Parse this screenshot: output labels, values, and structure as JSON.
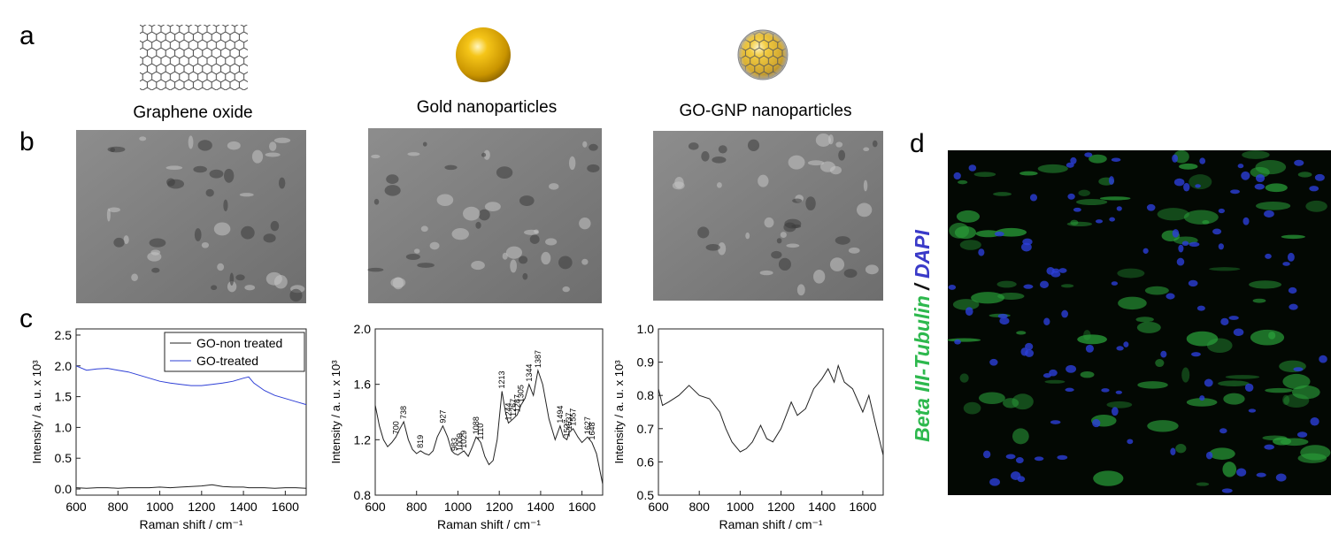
{
  "panel_labels": {
    "a": "a",
    "b": "b",
    "c": "c",
    "d": "d"
  },
  "icons": {
    "graphene": "Graphene oxide",
    "gold": "Gold nanoparticles",
    "gognp": "GO-GNP nanoparticles"
  },
  "stain_label": {
    "marker": "Beta III-Tubulin",
    "separator": " / ",
    "nucleus": "DAPI"
  },
  "chart_data": [
    {
      "type": "line",
      "xlabel": "Raman shift / cm⁻¹",
      "ylabel": "Intensity / a. u. x 10³",
      "xlim": [
        600,
        1700
      ],
      "xticks": [
        600,
        800,
        1000,
        1200,
        1400,
        1600
      ],
      "ylim": [
        -0.1,
        2.6
      ],
      "yticks": [
        {
          "value": 0,
          "label": "0.0"
        },
        0.5,
        {
          "value": 1,
          "label": "1.0"
        },
        1.5,
        {
          "value": 2,
          "label": "2.0"
        },
        2.5
      ],
      "legend": "upper right",
      "x": [
        600,
        650,
        700,
        750,
        800,
        850,
        900,
        950,
        1000,
        1050,
        1100,
        1150,
        1200,
        1250,
        1300,
        1350,
        1400,
        1425,
        1450,
        1500,
        1550,
        1600,
        1650,
        1700
      ],
      "series": [
        {
          "name": "GO-non treated",
          "color": "#222222",
          "values": [
            0.02,
            0.01,
            0.02,
            0.02,
            0.01,
            0.02,
            0.02,
            0.02,
            0.03,
            0.02,
            0.03,
            0.04,
            0.05,
            0.07,
            0.04,
            0.03,
            0.03,
            0.02,
            0.02,
            0.02,
            0.01,
            0.02,
            0.02,
            0.01
          ]
        },
        {
          "name": "GO-treated",
          "color": "#2e3fd6",
          "values": [
            2.0,
            1.93,
            1.95,
            1.96,
            1.93,
            1.9,
            1.85,
            1.8,
            1.75,
            1.72,
            1.7,
            1.68,
            1.68,
            1.7,
            1.72,
            1.75,
            1.8,
            1.82,
            1.72,
            1.6,
            1.52,
            1.47,
            1.42,
            1.37
          ]
        }
      ]
    },
    {
      "type": "line",
      "xlabel": "Raman shift / cm⁻¹",
      "ylabel": "Intensity / a. u. x 10³",
      "xlim": [
        600,
        1700
      ],
      "xticks": [
        600,
        800,
        1000,
        1200,
        1400,
        1600
      ],
      "ylim": [
        0.8,
        2.0
      ],
      "yticks": [
        0.8,
        1.2,
        1.6,
        {
          "value": 2,
          "label": "2.0"
        }
      ],
      "x": [
        600,
        620,
        640,
        660,
        680,
        700,
        720,
        738,
        760,
        780,
        800,
        819,
        840,
        860,
        880,
        900,
        927,
        950,
        970,
        983,
        1000,
        1009,
        1029,
        1050,
        1070,
        1088,
        1100,
        1110,
        1130,
        1150,
        1170,
        1190,
        1213,
        1230,
        1244,
        1267,
        1287,
        1305,
        1325,
        1344,
        1365,
        1387,
        1410,
        1440,
        1470,
        1494,
        1510,
        1527,
        1537,
        1557,
        1580,
        1600,
        1627,
        1648,
        1670,
        1700
      ],
      "series": [
        {
          "color": "#222222",
          "values": [
            1.45,
            1.3,
            1.2,
            1.15,
            1.18,
            1.22,
            1.28,
            1.33,
            1.2,
            1.13,
            1.1,
            1.12,
            1.1,
            1.09,
            1.12,
            1.22,
            1.3,
            1.22,
            1.12,
            1.1,
            1.09,
            1.1,
            1.12,
            1.08,
            1.15,
            1.22,
            1.2,
            1.18,
            1.08,
            1.02,
            1.05,
            1.2,
            1.55,
            1.4,
            1.32,
            1.35,
            1.38,
            1.45,
            1.5,
            1.6,
            1.52,
            1.7,
            1.6,
            1.35,
            1.2,
            1.3,
            1.22,
            1.2,
            1.25,
            1.28,
            1.22,
            1.18,
            1.22,
            1.18,
            1.1,
            0.88
          ]
        }
      ],
      "peaks": [
        700,
        738,
        819,
        927,
        983,
        1009,
        1029,
        1088,
        1110,
        1213,
        1244,
        1267,
        1287,
        1305,
        1344,
        1387,
        1494,
        1527,
        1537,
        1557,
        1627,
        1648
      ]
    },
    {
      "type": "line",
      "xlabel": "Raman shift / cm⁻¹",
      "ylabel": "Intensity / a. u. x 10³",
      "xlim": [
        600,
        1700
      ],
      "xticks": [
        600,
        800,
        1000,
        1200,
        1400,
        1600
      ],
      "ylim": [
        0.5,
        1.0
      ],
      "yticks": [
        0.5,
        0.6,
        0.7,
        0.8,
        0.9,
        {
          "value": 1,
          "label": "1.0"
        }
      ],
      "x": [
        600,
        620,
        650,
        700,
        750,
        800,
        850,
        900,
        930,
        960,
        1000,
        1030,
        1060,
        1100,
        1130,
        1160,
        1200,
        1250,
        1280,
        1320,
        1360,
        1400,
        1430,
        1460,
        1480,
        1510,
        1550,
        1600,
        1630,
        1660,
        1700
      ],
      "series": [
        {
          "color": "#222222",
          "values": [
            0.82,
            0.77,
            0.78,
            0.8,
            0.83,
            0.8,
            0.79,
            0.75,
            0.7,
            0.66,
            0.63,
            0.64,
            0.66,
            0.71,
            0.67,
            0.66,
            0.7,
            0.78,
            0.74,
            0.76,
            0.82,
            0.85,
            0.88,
            0.84,
            0.89,
            0.84,
            0.82,
            0.75,
            0.8,
            0.72,
            0.62
          ]
        }
      ]
    }
  ]
}
